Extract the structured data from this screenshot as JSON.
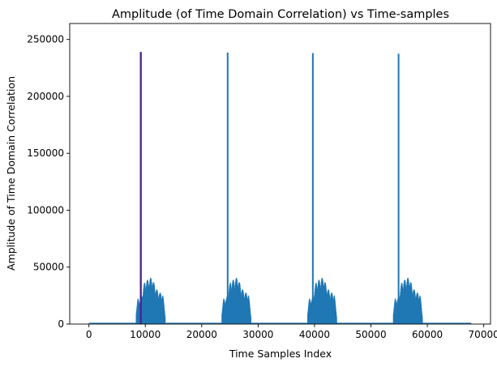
{
  "chart_data": {
    "type": "line",
    "title": "Amplitude (of Time Domain Correlation) vs Time-samples",
    "xlabel": "Time Samples Index",
    "ylabel": "Amplitude of Time Domain Correlation",
    "xlim": [
      -3400,
      71200
    ],
    "ylim": [
      0,
      264000
    ],
    "xticks": [
      0,
      10000,
      20000,
      30000,
      40000,
      50000,
      60000,
      70000
    ],
    "yticks": [
      0,
      50000,
      100000,
      150000,
      200000,
      250000
    ],
    "xtick_labels": [
      "0",
      "10000",
      "20000",
      "30000",
      "40000",
      "50000",
      "60000",
      "70000"
    ],
    "ytick_labels": [
      "0",
      "50000",
      "100000",
      "150000",
      "200000",
      "250000"
    ],
    "grid": false,
    "legend": null,
    "series": [
      {
        "color": "#1f77b4",
        "x_range": [
          0,
          67800
        ],
        "baseline": 700,
        "bursts": [
          {
            "start": 8400,
            "end": 13500,
            "peak_x": 9200,
            "peak_y": 238000
          },
          {
            "start": 23600,
            "end": 28800,
            "peak_x": 24600,
            "peak_y": 238500
          },
          {
            "start": 38800,
            "end": 44000,
            "peak_x": 39700,
            "peak_y": 238000
          },
          {
            "start": 54000,
            "end": 59200,
            "peak_x": 54900,
            "peak_y": 237500
          }
        ],
        "burst_envelope": [
          {
            "offset": 0,
            "value": 12000
          },
          {
            "offset": 300,
            "value": 22000
          },
          {
            "offset": 800,
            "value": 22000
          },
          {
            "offset": 1500,
            "value": 37000
          },
          {
            "offset": 2800,
            "value": 41000
          },
          {
            "offset": 3300,
            "value": 33000
          },
          {
            "offset": 3900,
            "value": 28000
          },
          {
            "offset": 4700,
            "value": 26000
          },
          {
            "offset": 5100,
            "value": 9000
          }
        ]
      }
    ],
    "marker_line": {
      "color": "#4b1f8f",
      "x": 9200,
      "y0": 0,
      "y1": 239000
    }
  }
}
